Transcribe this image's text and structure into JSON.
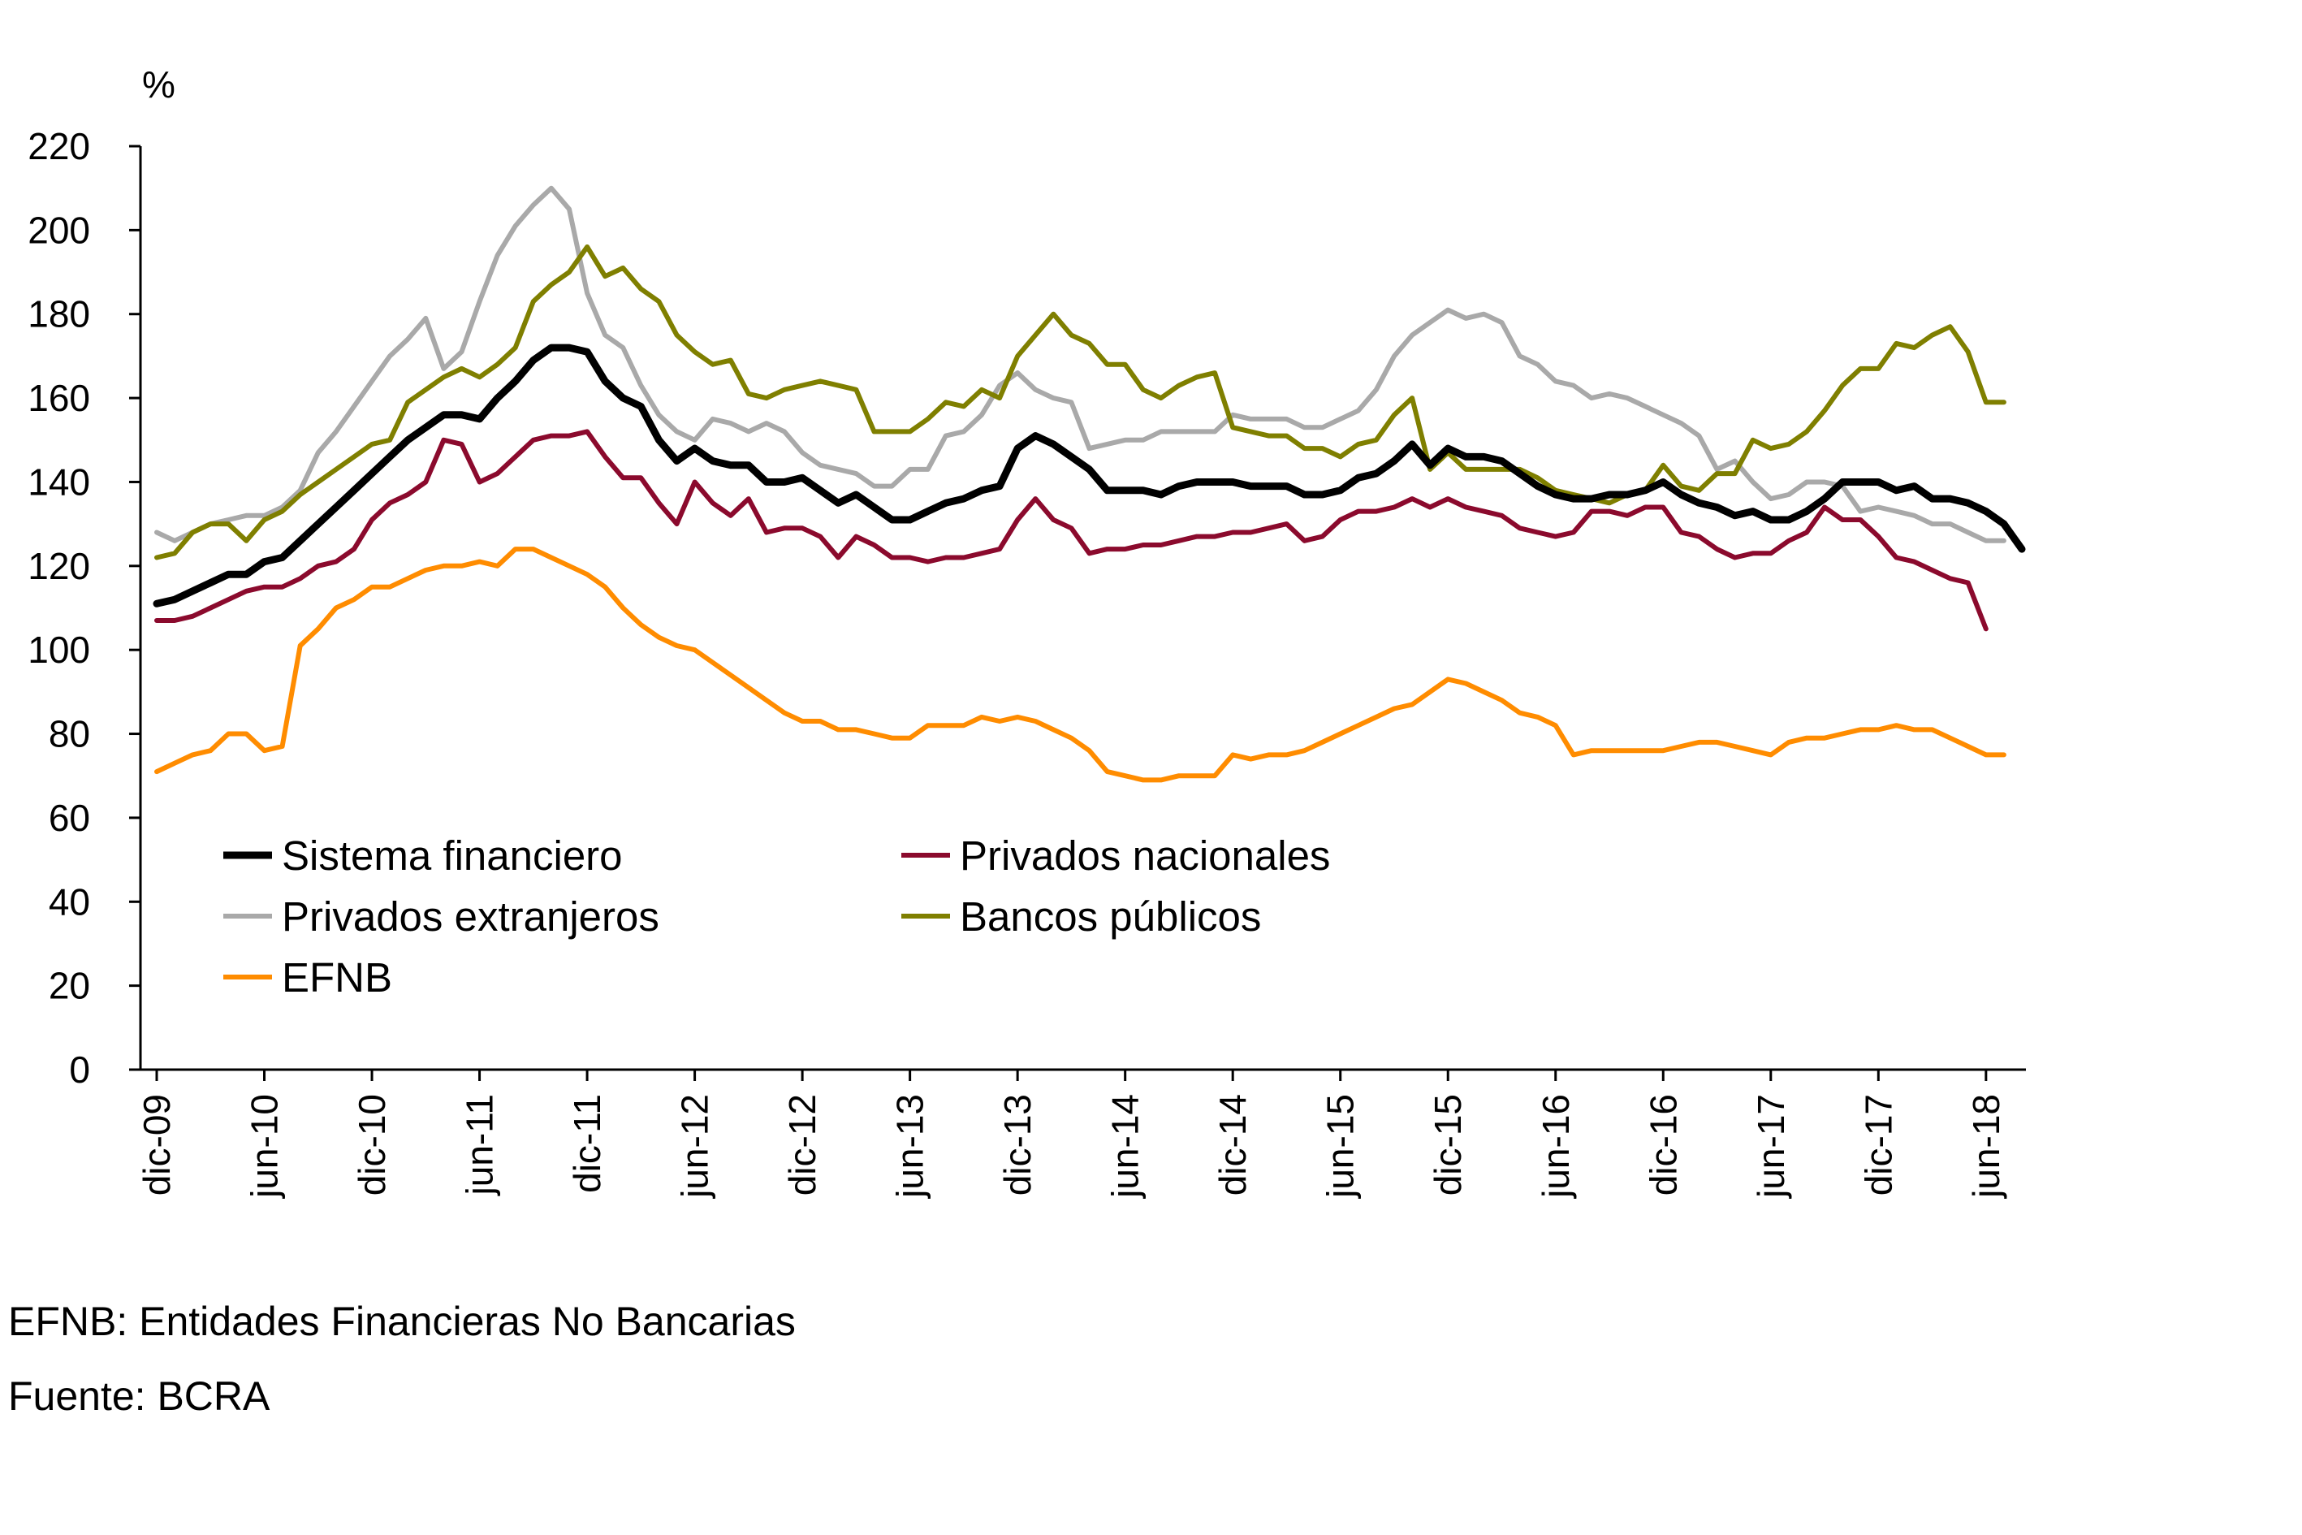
{
  "chart_data": {
    "type": "line",
    "ylabel": "%",
    "ylim": [
      0,
      220
    ],
    "yticks": [
      0,
      20,
      40,
      60,
      80,
      100,
      120,
      140,
      160,
      180,
      200,
      220
    ],
    "xtick_labels": [
      "dic-09",
      "jun-10",
      "dic-10",
      "jun-11",
      "dic-11",
      "jun-12",
      "dic-12",
      "jun-13",
      "dic-13",
      "jun-14",
      "dic-14",
      "jun-15",
      "dic-15",
      "jun-16",
      "dic-16",
      "jun-17",
      "dic-17",
      "jun-18"
    ],
    "grid": false,
    "legend": "bottom-left",
    "series": [
      {
        "name": "Sistema financiero",
        "color": "#000000",
        "width": 9,
        "values": [
          111,
          112,
          114,
          116,
          118,
          118,
          121,
          122,
          126,
          130,
          134,
          138,
          142,
          146,
          150,
          153,
          156,
          156,
          155,
          160,
          164,
          169,
          172,
          172,
          171,
          164,
          160,
          158,
          150,
          145,
          148,
          145,
          144,
          144,
          140,
          140,
          141,
          138,
          135,
          137,
          134,
          131,
          131,
          133,
          135,
          136,
          138,
          139,
          148,
          151,
          149,
          146,
          143,
          138,
          138,
          138,
          137,
          139,
          140,
          140,
          140,
          139,
          139,
          139,
          137,
          137,
          138,
          141,
          142,
          145,
          149,
          144,
          148,
          146,
          146,
          145,
          142,
          139,
          137,
          136,
          136,
          137,
          137,
          138,
          140,
          137,
          135,
          134,
          132,
          133,
          131,
          131,
          133,
          136,
          140,
          140,
          140,
          138,
          139,
          136,
          136,
          135,
          133,
          130,
          124
        ]
      },
      {
        "name": "Privados nacionales",
        "color": "#8B0A2D",
        "width": 6,
        "values": [
          107,
          107,
          108,
          110,
          112,
          114,
          115,
          115,
          117,
          120,
          121,
          124,
          131,
          135,
          137,
          140,
          150,
          149,
          140,
          142,
          146,
          150,
          151,
          151,
          152,
          146,
          141,
          141,
          135,
          130,
          140,
          135,
          132,
          136,
          128,
          129,
          129,
          127,
          122,
          127,
          125,
          122,
          122,
          121,
          122,
          122,
          123,
          124,
          131,
          136,
          131,
          129,
          123,
          124,
          124,
          125,
          125,
          126,
          127,
          127,
          128,
          128,
          129,
          130,
          126,
          127,
          131,
          133,
          133,
          134,
          136,
          134,
          136,
          134,
          133,
          132,
          129,
          128,
          127,
          128,
          133,
          133,
          132,
          134,
          134,
          128,
          127,
          124,
          122,
          123,
          123,
          126,
          128,
          134,
          131,
          131,
          127,
          122,
          121,
          119,
          117,
          116,
          105
        ]
      },
      {
        "name": "Privados extranjeros",
        "color": "#A9A9A9",
        "width": 6,
        "values": [
          128,
          126,
          128,
          130,
          131,
          132,
          132,
          134,
          138,
          147,
          152,
          158,
          164,
          170,
          174,
          179,
          167,
          171,
          183,
          194,
          201,
          206,
          210,
          205,
          185,
          175,
          172,
          163,
          156,
          152,
          150,
          155,
          154,
          152,
          154,
          152,
          147,
          144,
          143,
          142,
          139,
          139,
          143,
          143,
          151,
          152,
          156,
          163,
          166,
          162,
          160,
          159,
          148,
          149,
          150,
          150,
          152,
          152,
          152,
          152,
          156,
          155,
          155,
          155,
          153,
          153,
          155,
          157,
          162,
          170,
          175,
          178,
          181,
          179,
          180,
          178,
          170,
          168,
          164,
          163,
          160,
          161,
          160,
          158,
          156,
          154,
          151,
          143,
          145,
          140,
          136,
          137,
          140,
          140,
          139,
          133,
          134,
          133,
          132,
          130,
          130,
          128,
          126,
          126
        ]
      },
      {
        "name": "Bancos públicos",
        "color": "#7F7F00",
        "width": 6,
        "values": [
          122,
          123,
          128,
          130,
          130,
          126,
          131,
          133,
          137,
          140,
          143,
          146,
          149,
          150,
          159,
          162,
          165,
          167,
          165,
          168,
          172,
          183,
          187,
          190,
          196,
          189,
          191,
          186,
          183,
          175,
          171,
          168,
          169,
          161,
          160,
          162,
          163,
          164,
          163,
          162,
          152,
          152,
          152,
          155,
          159,
          158,
          162,
          160,
          170,
          175,
          180,
          175,
          173,
          168,
          168,
          162,
          160,
          163,
          165,
          166,
          153,
          152,
          151,
          151,
          148,
          148,
          146,
          149,
          150,
          156,
          160,
          143,
          147,
          143,
          143,
          143,
          143,
          141,
          138,
          137,
          136,
          135,
          137,
          138,
          144,
          139,
          138,
          142,
          142,
          150,
          148,
          149,
          152,
          157,
          163,
          167,
          167,
          173,
          172,
          175,
          177,
          171,
          159,
          159
        ]
      },
      {
        "name": "EFNB",
        "color": "#FF8C00",
        "width": 6,
        "values": [
          71,
          73,
          75,
          76,
          80,
          80,
          76,
          77,
          101,
          105,
          110,
          112,
          115,
          115,
          117,
          119,
          120,
          120,
          121,
          120,
          124,
          124,
          122,
          120,
          118,
          115,
          110,
          106,
          103,
          101,
          100,
          97,
          94,
          91,
          88,
          85,
          83,
          83,
          81,
          81,
          80,
          79,
          79,
          82,
          82,
          82,
          84,
          83,
          84,
          83,
          81,
          79,
          76,
          71,
          70,
          69,
          69,
          70,
          70,
          70,
          75,
          74,
          75,
          75,
          76,
          78,
          80,
          82,
          84,
          86,
          87,
          90,
          93,
          92,
          90,
          88,
          85,
          84,
          82,
          75,
          76,
          76,
          76,
          76,
          76,
          77,
          78,
          78,
          77,
          76,
          75,
          78,
          79,
          79,
          80,
          81,
          81,
          82,
          81,
          81,
          79,
          77,
          75,
          75
        ]
      }
    ]
  },
  "notes": {
    "line1": "EFNB: Entidades Financieras No Bancarias",
    "line2": "Fuente: BCRA"
  }
}
